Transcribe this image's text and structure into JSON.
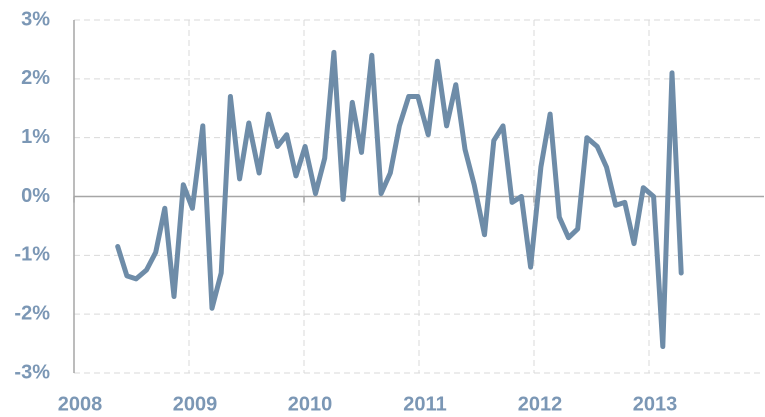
{
  "chart_data": {
    "type": "line",
    "x": [
      2008.38,
      2008.46,
      2008.54,
      2008.63,
      2008.71,
      2008.79,
      2008.87,
      2008.95,
      2009.03,
      2009.12,
      2009.2,
      2009.28,
      2009.36,
      2009.44,
      2009.52,
      2009.61,
      2009.69,
      2009.77,
      2009.85,
      2009.93,
      2010.01,
      2010.1,
      2010.18,
      2010.26,
      2010.34,
      2010.42,
      2010.5,
      2010.59,
      2010.67,
      2010.75,
      2010.83,
      2010.91,
      2010.99,
      2011.08,
      2011.16,
      2011.24,
      2011.32,
      2011.4,
      2011.48,
      2011.57,
      2011.65,
      2011.73,
      2011.81,
      2011.89,
      2011.97,
      2012.06,
      2012.14,
      2012.22,
      2012.3,
      2012.38,
      2012.46,
      2012.55,
      2012.63,
      2012.71,
      2012.79,
      2012.87,
      2012.95,
      2013.04,
      2013.12,
      2013.2,
      2013.28
    ],
    "series": [
      {
        "color": "#6e8ca8",
        "values": [
          -0.85,
          -1.35,
          -1.4,
          -1.25,
          -0.95,
          -0.2,
          -1.7,
          0.2,
          -0.2,
          1.2,
          -1.9,
          -1.3,
          1.7,
          0.3,
          1.25,
          0.4,
          1.4,
          0.85,
          1.05,
          0.35,
          0.85,
          0.05,
          0.65,
          2.45,
          -0.05,
          1.6,
          0.75,
          2.4,
          0.05,
          0.4,
          1.2,
          1.7,
          1.7,
          1.05,
          2.3,
          1.2,
          1.9,
          0.8,
          0.2,
          -0.65,
          0.95,
          1.2,
          -0.1,
          0.0,
          -1.2,
          0.5,
          1.4,
          -0.35,
          -0.7,
          -0.55,
          1.0,
          0.85,
          0.5,
          -0.15,
          -0.1,
          -0.8,
          0.15,
          0.0,
          -2.55,
          2.1,
          -1.3
        ]
      }
    ],
    "xlim": [
      2008,
      2014
    ],
    "xticks": [
      2008,
      2009,
      2010,
      2011,
      2012,
      2013
    ],
    "ylim": [
      -3,
      3
    ],
    "yticks": [
      {
        "value": -3,
        "label": "-3%"
      },
      {
        "value": -2,
        "label": "-2%"
      },
      {
        "value": -1,
        "label": "-1%"
      },
      {
        "value": 0,
        "label": "0%"
      },
      {
        "value": 1,
        "label": "1%"
      },
      {
        "value": 2,
        "label": "2%"
      },
      {
        "value": 3,
        "label": "3%"
      }
    ],
    "grid": true
  }
}
